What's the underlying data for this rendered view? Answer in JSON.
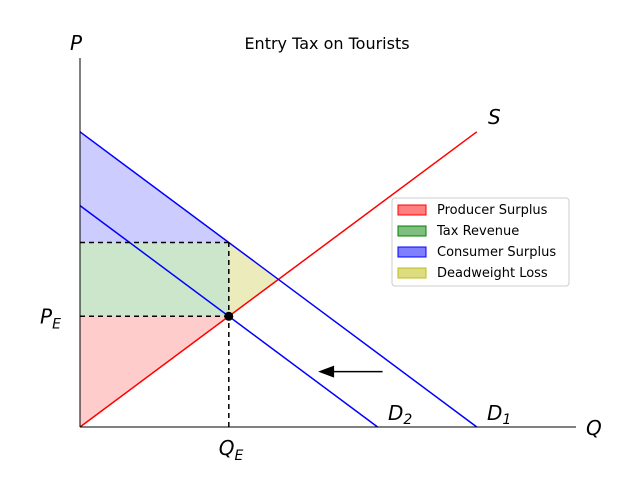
{
  "chart_data": {
    "type": "area",
    "title": "Entry Tax on Tourists",
    "xlabel": "Q",
    "ylabel": "P",
    "xlim": [
      0,
      100
    ],
    "ylim": [
      0,
      100
    ],
    "grid": false,
    "legend_position": "right",
    "lines": [
      {
        "key": "supply",
        "label": "S",
        "color": "#ff0000",
        "points": [
          [
            0,
            0
          ],
          [
            80,
            80
          ]
        ]
      },
      {
        "key": "d1",
        "label": "D1",
        "color": "#0000ff",
        "points": [
          [
            0,
            80
          ],
          [
            80,
            0
          ]
        ]
      },
      {
        "key": "d2",
        "label": "D2",
        "color": "#0000ff",
        "points": [
          [
            0,
            60
          ],
          [
            60,
            0
          ]
        ]
      }
    ],
    "areas": [
      {
        "key": "producer_surplus",
        "name": "Producer Surplus",
        "color": "#ff0000",
        "opacity": 0.2,
        "points": [
          [
            0,
            0
          ],
          [
            30,
            30
          ],
          [
            0,
            30
          ]
        ]
      },
      {
        "key": "tax_revenue",
        "name": "Tax Revenue",
        "color": "#008000",
        "opacity": 0.2,
        "points": [
          [
            0,
            30
          ],
          [
            30,
            30
          ],
          [
            30,
            50
          ],
          [
            0,
            50
          ]
        ]
      },
      {
        "key": "consumer_surplus",
        "name": "Consumer Surplus",
        "color": "#0000ff",
        "opacity": 0.2,
        "points": [
          [
            0,
            50
          ],
          [
            30,
            50
          ],
          [
            0,
            80
          ]
        ]
      },
      {
        "key": "deadweight_loss",
        "name": "Deadweight Loss",
        "color": "#bcbd22",
        "opacity": 0.3,
        "points": [
          [
            30,
            30
          ],
          [
            30,
            50
          ],
          [
            40,
            40
          ]
        ]
      }
    ],
    "equilibrium": {
      "q": 30,
      "p": 30,
      "label_q": "Q",
      "label_q_sub": "E",
      "label_p": "P",
      "label_p_sub": "E"
    },
    "reference_lines": {
      "q_dashed": [
        30,
        0,
        30,
        50
      ],
      "p_dashed_low": [
        0,
        30,
        30,
        30
      ],
      "p_dashed_high": [
        0,
        50,
        30,
        50
      ]
    },
    "arrow": {
      "from": [
        61,
        15
      ],
      "to": [
        48,
        15
      ]
    },
    "curve_labels": [
      {
        "key": "S",
        "text": "S",
        "sub": ""
      },
      {
        "key": "D1",
        "text": "D",
        "sub": "1"
      },
      {
        "key": "D2",
        "text": "D",
        "sub": "2"
      }
    ],
    "legend": [
      {
        "key": "producer_surplus",
        "label": "Producer Surplus"
      },
      {
        "key": "tax_revenue",
        "label": "Tax Revenue"
      },
      {
        "key": "consumer_surplus",
        "label": "Consumer Surplus"
      },
      {
        "key": "deadweight_loss",
        "label": "Deadweight Loss"
      }
    ]
  }
}
